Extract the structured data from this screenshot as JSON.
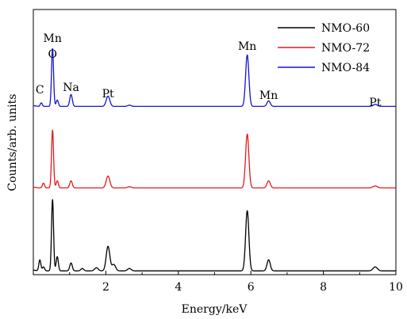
{
  "chart_data": {
    "type": "line",
    "xlabel": "Energy/keV",
    "ylabel": "Counts/arb. units",
    "xlim": [
      0,
      10
    ],
    "x_ticks": [
      {
        "value": 2,
        "label": "2"
      },
      {
        "value": 4,
        "label": "4"
      },
      {
        "value": 6,
        "label": "6"
      },
      {
        "value": 8,
        "label": "8"
      },
      {
        "value": 10,
        "label": "10"
      }
    ],
    "y_ticks_shown": false,
    "legend": {
      "position": "top-right"
    },
    "series": [
      {
        "name": "NMO-60",
        "color": "#000000",
        "offset": 0,
        "baseline": 0.8,
        "peaks": [
          [
            0.18,
            14,
            0.028
          ],
          [
            0.28,
            5,
            0.03
          ],
          [
            0.53,
            90,
            0.028
          ],
          [
            0.66,
            18,
            0.03
          ],
          [
            1.04,
            10,
            0.035
          ],
          [
            1.35,
            3,
            0.04
          ],
          [
            1.74,
            4,
            0.05
          ],
          [
            2.06,
            31,
            0.05
          ],
          [
            2.22,
            8,
            0.05
          ],
          [
            2.65,
            3,
            0.05
          ],
          [
            5.9,
            76,
            0.045
          ],
          [
            6.49,
            14,
            0.045
          ],
          [
            9.43,
            5,
            0.06
          ]
        ]
      },
      {
        "name": "NMO-72",
        "color": "#e41a1c",
        "offset": 105,
        "baseline": 0.6,
        "peaks": [
          [
            0.28,
            6,
            0.03
          ],
          [
            0.53,
            73,
            0.028
          ],
          [
            0.66,
            9,
            0.03
          ],
          [
            1.04,
            9,
            0.035
          ],
          [
            2.06,
            15,
            0.05
          ],
          [
            2.65,
            1.5,
            0.05
          ],
          [
            5.9,
            68,
            0.045
          ],
          [
            6.49,
            9,
            0.045
          ],
          [
            9.43,
            2.5,
            0.06
          ]
        ]
      },
      {
        "name": "NMO-84",
        "color": "#1414d0",
        "offset": 208,
        "baseline": 0.6,
        "peaks": [
          [
            0.22,
            4.5,
            0.028
          ],
          [
            0.53,
            73,
            0.028
          ],
          [
            0.66,
            8,
            0.03
          ],
          [
            1.04,
            15,
            0.035
          ],
          [
            2.06,
            13,
            0.05
          ],
          [
            2.65,
            1.5,
            0.05
          ],
          [
            5.9,
            65,
            0.045
          ],
          [
            6.49,
            7,
            0.045
          ],
          [
            9.43,
            2.5,
            0.06
          ]
        ]
      }
    ],
    "annotations": [
      {
        "text": "Mn",
        "x": 0.53,
        "y": 290
      },
      {
        "text": "O",
        "x": 0.53,
        "y": 270
      },
      {
        "text": "C",
        "x": 0.18,
        "y": 225
      },
      {
        "text": "Na",
        "x": 1.04,
        "y": 228
      },
      {
        "text": "Pt",
        "x": 2.06,
        "y": 220
      },
      {
        "text": "Mn",
        "x": 5.9,
        "y": 280
      },
      {
        "text": "Mn",
        "x": 6.49,
        "y": 218
      },
      {
        "text": "Pt",
        "x": 9.43,
        "y": 209
      }
    ]
  }
}
